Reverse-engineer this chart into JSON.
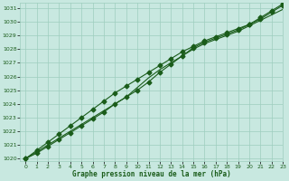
{
  "title": "Graphe pression niveau de la mer (hPa)",
  "xlim": [
    -0.5,
    23
  ],
  "ylim": [
    1019.8,
    1031.4
  ],
  "yticks": [
    1020,
    1021,
    1022,
    1023,
    1024,
    1025,
    1026,
    1027,
    1028,
    1029,
    1030,
    1031
  ],
  "xticks": [
    0,
    1,
    2,
    3,
    4,
    5,
    6,
    7,
    8,
    9,
    10,
    11,
    12,
    13,
    14,
    15,
    16,
    17,
    18,
    19,
    20,
    21,
    22,
    23
  ],
  "bg_color": "#c8e8e0",
  "grid_color": "#9ecebe",
  "line_color": "#1a5c1a",
  "line1": [
    1020.0,
    1020.5,
    1021.0,
    1021.5,
    1022.0,
    1022.5,
    1023.0,
    1023.5,
    1024.0,
    1024.5,
    1025.2,
    1025.9,
    1026.5,
    1027.0,
    1027.5,
    1028.0,
    1028.4,
    1028.7,
    1029.0,
    1029.3,
    1029.7,
    1030.1,
    1030.5,
    1030.9
  ],
  "line2": [
    1020.0,
    1020.6,
    1021.2,
    1021.8,
    1022.4,
    1023.0,
    1023.6,
    1024.2,
    1024.8,
    1025.3,
    1025.8,
    1026.3,
    1026.8,
    1027.3,
    1027.8,
    1028.2,
    1028.6,
    1028.9,
    1029.2,
    1029.5,
    1029.8,
    1030.2,
    1030.7,
    1031.2
  ],
  "line3": [
    1020.0,
    1020.4,
    1020.9,
    1021.4,
    1021.9,
    1022.4,
    1022.9,
    1023.4,
    1024.0,
    1024.5,
    1025.0,
    1025.6,
    1026.3,
    1026.9,
    1027.5,
    1028.1,
    1028.5,
    1028.8,
    1029.1,
    1029.4,
    1029.8,
    1030.3,
    1030.8,
    1031.3
  ],
  "marker": "D",
  "marker_size": 2.5,
  "linewidth": 0.8,
  "figwidth": 3.2,
  "figheight": 2.0,
  "dpi": 100
}
